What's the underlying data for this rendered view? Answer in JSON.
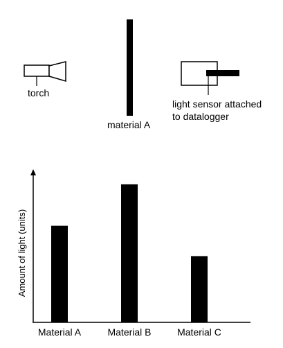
{
  "setup": {
    "torch_label": "torch",
    "material_label": "material A",
    "sensor_label_line1": "light sensor attached",
    "sensor_label_line2": "to datalogger"
  },
  "chart": {
    "ylabel": "Amount of light (units)"
  },
  "chart_data": {
    "type": "bar",
    "categories": [
      "Material A",
      "Material B",
      "Material C"
    ],
    "values": [
      7,
      10,
      4.8
    ],
    "ylim": [
      0,
      10.8
    ],
    "grid": false,
    "colors": {
      "bar": "#000000",
      "axis": "#000000"
    }
  }
}
